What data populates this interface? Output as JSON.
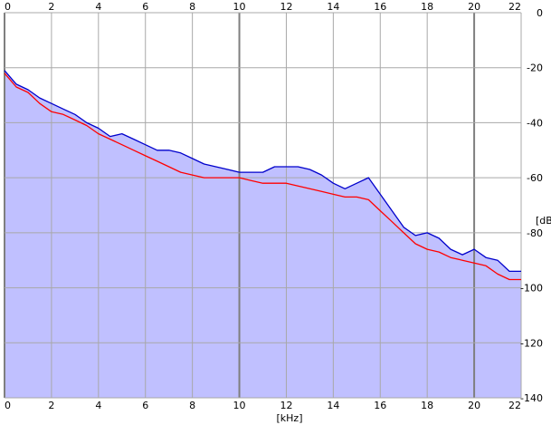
{
  "chart_data": {
    "type": "area",
    "xlabel": "[kHz]",
    "ylabel": "[dB]",
    "xlim": [
      0,
      22
    ],
    "ylim": [
      -140,
      0
    ],
    "x_ticks": [
      "0",
      "2",
      "4",
      "6",
      "8",
      "10",
      "12",
      "14",
      "16",
      "18",
      "20",
      "22"
    ],
    "y_ticks": [
      "0",
      "-20",
      "-40",
      "-60",
      "-80",
      "-100",
      "-120",
      "-140"
    ],
    "grid": true,
    "fill_color": "#c0c0ff",
    "series": [
      {
        "color": "#ff0000",
        "x": [
          0,
          0.5,
          1,
          1.5,
          2,
          2.5,
          3,
          3.5,
          4,
          4.5,
          5,
          5.5,
          6,
          6.5,
          7,
          7.5,
          8,
          8.5,
          9,
          9.5,
          10,
          10.5,
          11,
          11.5,
          12,
          12.5,
          13,
          13.5,
          14,
          14.5,
          15,
          15.5,
          16,
          16.5,
          17,
          17.5,
          18,
          18.5,
          19,
          19.5,
          20,
          20.5,
          21,
          21.5,
          22
        ],
        "values": [
          -22,
          -27,
          -29,
          -33,
          -36,
          -37,
          -39,
          -41,
          -44,
          -46,
          -48,
          -50,
          -52,
          -54,
          -56,
          -58,
          -59,
          -60,
          -60,
          -60,
          -60,
          -61,
          -62,
          -62,
          -62,
          -63,
          -64,
          -65,
          -66,
          -67,
          -67,
          -68,
          -72,
          -76,
          -80,
          -84,
          -86,
          -87,
          -89,
          -90,
          -91,
          -92,
          -95,
          -97,
          -97
        ]
      },
      {
        "color": "#0000cc",
        "x": [
          0,
          0.5,
          1,
          1.5,
          2,
          2.5,
          3,
          3.5,
          4,
          4.5,
          5,
          5.5,
          6,
          6.5,
          7,
          7.5,
          8,
          8.5,
          9,
          9.5,
          10,
          10.5,
          11,
          11.5,
          12,
          12.5,
          13,
          13.5,
          14,
          14.5,
          15,
          15.5,
          16,
          16.5,
          17,
          17.5,
          18,
          18.5,
          19,
          19.5,
          20,
          20.5,
          21,
          21.5,
          22
        ],
        "values": [
          -21,
          -26,
          -28,
          -31,
          -33,
          -35,
          -37,
          -40,
          -42,
          -45,
          -44,
          -46,
          -48,
          -50,
          -50,
          -51,
          -53,
          -55,
          -56,
          -57,
          -58,
          -58,
          -58,
          -56,
          -56,
          -56,
          -57,
          -59,
          -62,
          -64,
          -62,
          -60,
          -66,
          -72,
          -78,
          -81,
          -80,
          -82,
          -86,
          -88,
          -86,
          -89,
          -90,
          -94,
          -94
        ]
      }
    ]
  }
}
